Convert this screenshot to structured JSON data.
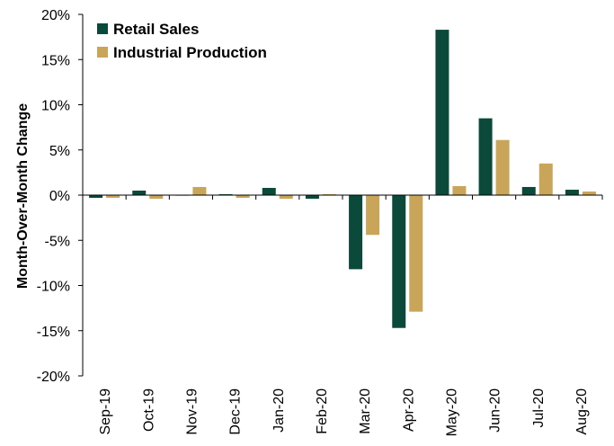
{
  "chart_data": {
    "type": "bar",
    "title": "",
    "xlabel": "",
    "ylabel": "Month-Over-Month  Change",
    "ylim": [
      -20,
      20
    ],
    "yticks": [
      -20,
      -15,
      -10,
      -5,
      0,
      5,
      10,
      15,
      20
    ],
    "ytick_labels": [
      "-20%",
      "-15%",
      "-10%",
      "-5%",
      "0%",
      "5%",
      "10%",
      "15%",
      "20%"
    ],
    "categories": [
      "Sep-19",
      "Oct-19",
      "Nov-19",
      "Dec-19",
      "Jan-20",
      "Feb-20",
      "Mar-20",
      "Apr-20",
      "May-20",
      "Jun-20",
      "Jul-20",
      "Aug-20"
    ],
    "series": [
      {
        "name": "Retail Sales",
        "color": "#0b4a3a",
        "values": [
          -0.3,
          0.5,
          0.0,
          0.1,
          0.8,
          -0.4,
          -8.2,
          -14.7,
          18.3,
          8.5,
          0.9,
          0.6
        ]
      },
      {
        "name": "Industrial Production",
        "color": "#c9a559",
        "values": [
          -0.3,
          -0.4,
          0.9,
          -0.3,
          -0.4,
          0.1,
          -4.4,
          -12.9,
          1.0,
          6.1,
          3.5,
          0.4
        ]
      }
    ],
    "grid": false,
    "legend_position": "top-left"
  }
}
